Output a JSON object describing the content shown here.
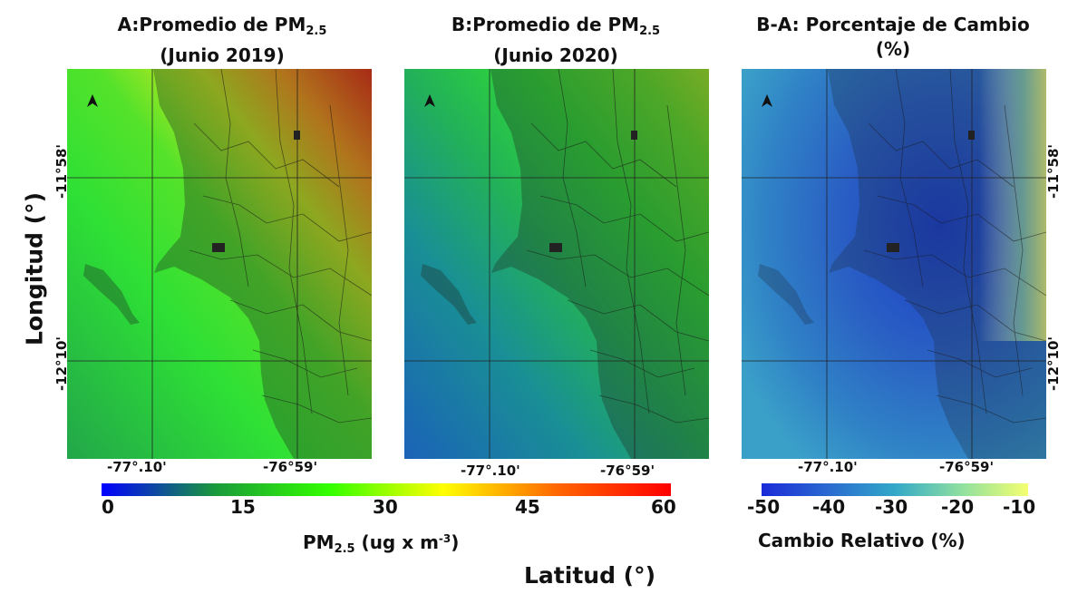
{
  "titles": {
    "a_line1": "A:Promedio de PM",
    "a_sub": "2.5",
    "a_line2": "(Junio 2019)",
    "b_line1": "B:Promedio de PM",
    "b_sub": "2.5",
    "b_line2": "(Junio 2020)",
    "c_line1": "B-A: Porcentaje de Cambio",
    "c_line2": "(%)"
  },
  "axes": {
    "y_label": "Longitud (°)",
    "x_label": "Latitud (°)",
    "lat_ticks": [
      "-11°58'",
      "-12°10'"
    ],
    "lon_ticks": [
      "-77°.10'",
      "-76°59'"
    ]
  },
  "colorbar_pm": {
    "ticks": [
      "0",
      "15",
      "30",
      "45",
      "60"
    ],
    "min": 0,
    "max": 60,
    "label_prefix": "PM",
    "label_sub": "2.5",
    "label_units": " (ug x m",
    "label_sup": "-3",
    "label_close": ")",
    "colors": [
      "#0000ff",
      "#1a9a3a",
      "#33ff00",
      "#ffff00",
      "#ff6600",
      "#ff0000"
    ]
  },
  "colorbar_change": {
    "ticks": [
      "-50",
      "-40",
      "-30",
      "-20",
      "-10"
    ],
    "min": -50,
    "max": -10,
    "label": "Cambio Relativo (%)",
    "colors": [
      "#1a2ad8",
      "#2a6ad0",
      "#33a8c8",
      "#8fe0a0",
      "#f5ff70"
    ]
  },
  "north_arrow": "north-arrow-icon"
}
